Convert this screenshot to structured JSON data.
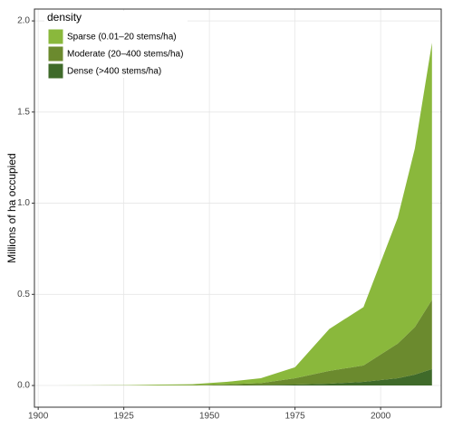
{
  "chart_data": {
    "type": "area",
    "stacked": true,
    "y_label": "Millions of ha occupied",
    "legend_title": "density",
    "legend": "top-left",
    "grid": true,
    "x": [
      1905,
      1915,
      1925,
      1935,
      1945,
      1955,
      1965,
      1975,
      1985,
      1995,
      2005,
      2010,
      2015
    ],
    "series": [
      {
        "name": "Sparse (0.01–20 stems/ha)",
        "color": "#8ab83c",
        "values": [
          0,
          0.001,
          0.001,
          0.004,
          0.005,
          0.013,
          0.027,
          0.06,
          0.23,
          0.32,
          0.69,
          0.98,
          1.41
        ]
      },
      {
        "name": "Moderate (20–400 stems/ha)",
        "color": "#6b8a2e",
        "values": [
          0,
          0,
          0.001,
          0.001,
          0.002,
          0.005,
          0.01,
          0.035,
          0.07,
          0.09,
          0.19,
          0.26,
          0.38
        ]
      },
      {
        "name": "Dense (>400 stems/ha)",
        "color": "#3f6a2a",
        "values": [
          0,
          0,
          0,
          0,
          0,
          0.002,
          0.003,
          0.005,
          0.01,
          0.02,
          0.04,
          0.06,
          0.09
        ]
      }
    ],
    "xlim": [
      1898.9,
      2017.7
    ],
    "xticks": [
      1900,
      1925,
      1950,
      1975,
      2000
    ],
    "ylim": [
      -0.119,
      2.065
    ],
    "yticks": [
      {
        "value": 0,
        "label": "0.0"
      },
      0.5,
      {
        "value": 1,
        "label": "1.0"
      },
      1.5,
      {
        "value": 2,
        "label": "2.0"
      }
    ]
  }
}
